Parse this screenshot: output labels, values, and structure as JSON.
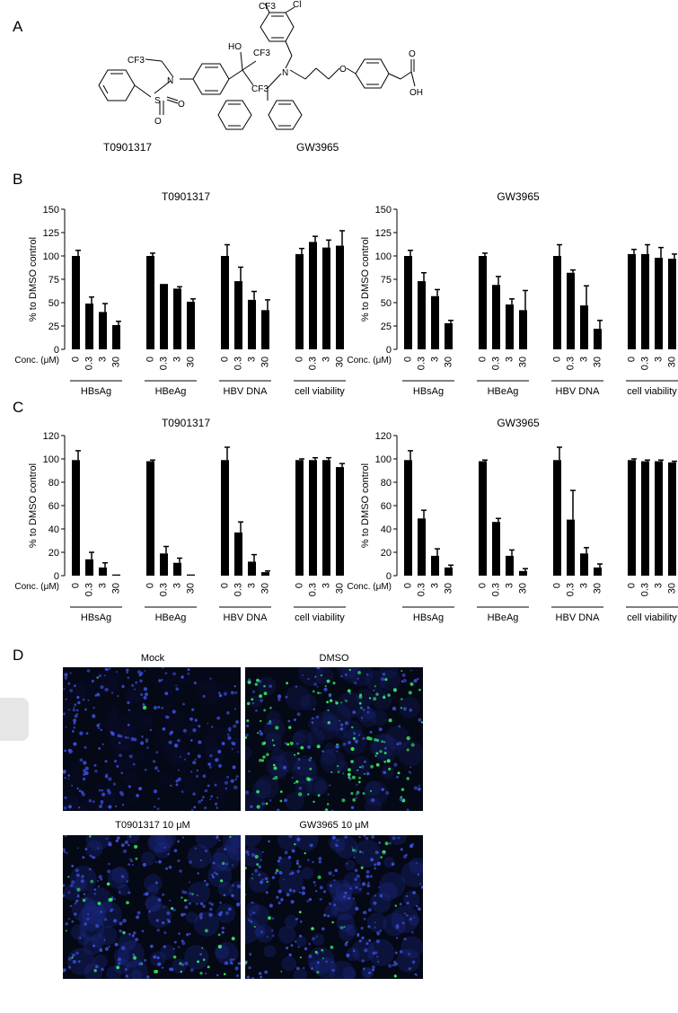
{
  "panel_labels": [
    "A",
    "B",
    "C",
    "D"
  ],
  "compounds": [
    {
      "name": "T0901317",
      "groups": [
        "CF3",
        "HO",
        "CF3",
        "CF3",
        "N",
        "S",
        "O",
        "O"
      ]
    },
    {
      "name": "GW3965",
      "groups": [
        "CF3",
        "Cl",
        "N",
        "O",
        "O",
        "OH"
      ]
    }
  ],
  "axis_common": {
    "ylabel": "% to DMSO control",
    "conc_label": "Conc. (μM)",
    "conc_ticks": [
      "0",
      "0.3",
      "3",
      "30"
    ],
    "groups": [
      "HBsAg",
      "HBeAg",
      "HBV DNA",
      "cell viability"
    ]
  },
  "chart_data": [
    {
      "panel": "B",
      "title": "T0901317",
      "type": "bar",
      "ylim": [
        0,
        150
      ],
      "yticks": [
        0,
        25,
        50,
        75,
        100,
        125,
        150
      ],
      "series": [
        {
          "name": "HBsAg",
          "values": [
            100,
            49,
            40,
            26
          ],
          "errors": [
            6,
            7,
            9,
            4
          ]
        },
        {
          "name": "HBeAg",
          "values": [
            100,
            70,
            65,
            51
          ],
          "errors": [
            3,
            0,
            2,
            3
          ]
        },
        {
          "name": "HBV DNA",
          "values": [
            100,
            73,
            53,
            42
          ],
          "errors": [
            12,
            15,
            9,
            11
          ]
        },
        {
          "name": "cell viability",
          "values": [
            102,
            115,
            109,
            111
          ],
          "errors": [
            6,
            6,
            8,
            16
          ]
        }
      ]
    },
    {
      "panel": "B",
      "title": "GW3965",
      "type": "bar",
      "ylim": [
        0,
        150
      ],
      "yticks": [
        0,
        25,
        50,
        75,
        100,
        125,
        150
      ],
      "series": [
        {
          "name": "HBsAg",
          "values": [
            100,
            73,
            57,
            28
          ],
          "errors": [
            6,
            9,
            7,
            3
          ]
        },
        {
          "name": "HBeAg",
          "values": [
            100,
            69,
            48,
            42
          ],
          "errors": [
            3,
            9,
            6,
            21
          ]
        },
        {
          "name": "HBV DNA",
          "values": [
            100,
            82,
            47,
            22
          ],
          "errors": [
            12,
            3,
            21,
            9
          ]
        },
        {
          "name": "cell viability",
          "values": [
            102,
            102,
            98,
            97
          ],
          "errors": [
            5,
            10,
            11,
            5
          ]
        }
      ]
    },
    {
      "panel": "C",
      "title": "T0901317",
      "type": "bar",
      "ylim": [
        0,
        120
      ],
      "yticks": [
        0,
        20,
        40,
        60,
        80,
        100,
        120
      ],
      "series": [
        {
          "name": "HBsAg",
          "values": [
            99,
            14,
            7,
            1
          ],
          "errors": [
            8,
            6,
            4,
            0
          ]
        },
        {
          "name": "HBeAg",
          "values": [
            98,
            19,
            11,
            1
          ],
          "errors": [
            1,
            6,
            4,
            0
          ]
        },
        {
          "name": "HBV DNA",
          "values": [
            99,
            37,
            12,
            3
          ],
          "errors": [
            11,
            9,
            6,
            1
          ]
        },
        {
          "name": "cell viability",
          "values": [
            99,
            99,
            99,
            93
          ],
          "errors": [
            1,
            2,
            2,
            3
          ]
        }
      ]
    },
    {
      "panel": "C",
      "title": "GW3965",
      "type": "bar",
      "ylim": [
        0,
        120
      ],
      "yticks": [
        0,
        20,
        40,
        60,
        80,
        100,
        120
      ],
      "series": [
        {
          "name": "HBsAg",
          "values": [
            99,
            49,
            17,
            7
          ],
          "errors": [
            8,
            7,
            6,
            2
          ]
        },
        {
          "name": "HBeAg",
          "values": [
            98,
            46,
            17,
            4
          ],
          "errors": [
            1,
            3,
            5,
            2
          ]
        },
        {
          "name": "HBV DNA",
          "values": [
            99,
            48,
            19,
            7
          ],
          "errors": [
            11,
            25,
            5,
            3
          ]
        },
        {
          "name": "cell viability",
          "values": [
            99,
            98,
            98,
            97
          ],
          "errors": [
            1,
            1,
            1,
            1
          ]
        }
      ]
    }
  ],
  "micrographs": [
    {
      "title": "Mock",
      "green": 0.02
    },
    {
      "title": "DMSO",
      "green": 0.55
    },
    {
      "title": "T0901317 10 μM",
      "green": 0.15
    },
    {
      "title": "GW3965 10 μM",
      "green": 0.12
    }
  ],
  "colors": {
    "bar": "#000000",
    "nuclei": "#3a4fd8",
    "hbv": "#33ee66",
    "background": "#050815"
  }
}
